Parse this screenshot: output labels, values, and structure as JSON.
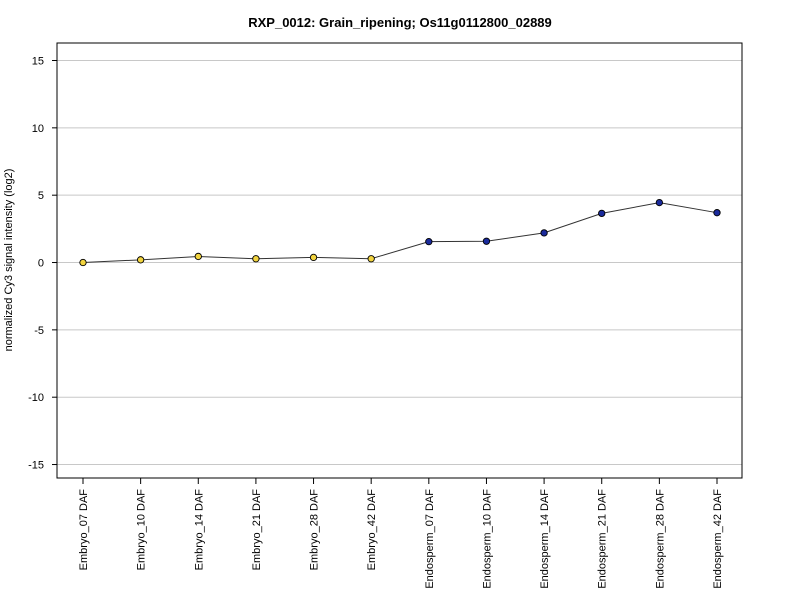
{
  "chart_data": {
    "type": "line",
    "title": "RXP_0012: Grain_ripening; Os11g0112800_02889",
    "xlabel": "",
    "ylabel": "normalized Cy3 signal intensity (log2)",
    "ylim": [
      -16,
      16.3
    ],
    "yticks": [
      -15,
      -10,
      -5,
      0,
      5,
      10,
      15
    ],
    "grid": true,
    "categories": [
      "Embryo_07 DAF",
      "Embryo_10 DAF",
      "Embryo_14 DAF",
      "Embryo_21 DAF",
      "Embryo_28 DAF",
      "Embryo_42 DAF",
      "Endosperm_07 DAF",
      "Endosperm_10 DAF",
      "Endosperm_14 DAF",
      "Endosperm_21 DAF",
      "Endosperm_28 DAF",
      "Endosperm_42 DAF"
    ],
    "series": [
      {
        "values": [
          0.0,
          0.2,
          0.45,
          0.28,
          0.38,
          0.28,
          1.55,
          1.58,
          2.2,
          3.65,
          4.45,
          3.7
        ],
        "point_colors": [
          "#f2d43f",
          "#f2d43f",
          "#f2d43f",
          "#f2d43f",
          "#f2d43f",
          "#f2d43f",
          "#1a2a9c",
          "#1a2a9c",
          "#1a2a9c",
          "#1a2a9c",
          "#1a2a9c",
          "#1a2a9c"
        ],
        "line_color": "#333333"
      }
    ]
  }
}
